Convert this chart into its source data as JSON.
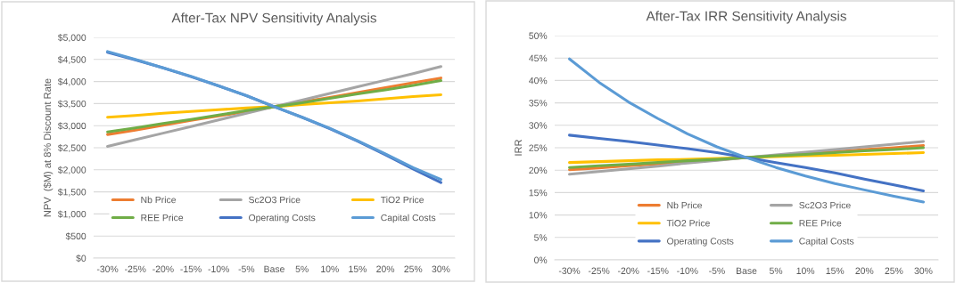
{
  "chart_data": [
    {
      "type": "line",
      "title": "After-Tax NPV Sensitivity Analysis",
      "ylabel": "NPV  ($M) at 8% Discount Rate",
      "categories": [
        "-30%",
        "-25%",
        "-20%",
        "-15%",
        "-10%",
        "-5%",
        "Base",
        "5%",
        "10%",
        "15%",
        "20%",
        "25%",
        "30%"
      ],
      "ylim": [
        0,
        5000
      ],
      "yticks": [
        {
          "value": 0,
          "label": "$0"
        },
        {
          "value": 500,
          "label": "$500"
        },
        {
          "value": 1000,
          "label": "$1,000"
        },
        {
          "value": 1500,
          "label": "$1,500"
        },
        {
          "value": 2000,
          "label": "$2,000"
        },
        {
          "value": 2500,
          "label": "$2,500"
        },
        {
          "value": 3000,
          "label": "$3,000"
        },
        {
          "value": 3500,
          "label": "$3,500"
        },
        {
          "value": 4000,
          "label": "$4,000"
        },
        {
          "value": 4500,
          "label": "$4,500"
        },
        {
          "value": 5000,
          "label": "$5,000"
        }
      ],
      "grid": "y",
      "legend": "bottom",
      "series": [
        {
          "name": "Nb Price",
          "color": "#ed7d31",
          "values": [
            2800,
            2900,
            3010,
            3120,
            3220,
            3320,
            3430,
            3540,
            3640,
            3750,
            3860,
            3970,
            4080
          ]
        },
        {
          "name": "Sc2O3 Price",
          "color": "#a5a5a5",
          "values": [
            2530,
            2680,
            2830,
            2980,
            3130,
            3280,
            3430,
            3580,
            3730,
            3880,
            4030,
            4180,
            4340
          ]
        },
        {
          "name": "TiO2 Price",
          "color": "#ffc000",
          "values": [
            3190,
            3230,
            3280,
            3320,
            3360,
            3400,
            3430,
            3480,
            3520,
            3560,
            3610,
            3660,
            3700
          ]
        },
        {
          "name": "REE Price",
          "color": "#70ad47",
          "values": [
            2860,
            2950,
            3050,
            3140,
            3240,
            3340,
            3430,
            3520,
            3620,
            3720,
            3810,
            3910,
            4020
          ]
        },
        {
          "name": "Operating Costs",
          "color": "#4472c4",
          "values": [
            4660,
            4490,
            4310,
            4110,
            3900,
            3680,
            3430,
            3190,
            2930,
            2650,
            2340,
            2020,
            1710
          ]
        },
        {
          "name": "Capital Costs",
          "color": "#5b9bd5",
          "values": [
            4680,
            4500,
            4310,
            4120,
            3900,
            3680,
            3430,
            3190,
            2940,
            2660,
            2360,
            2050,
            1780
          ]
        }
      ]
    },
    {
      "type": "line",
      "title": "After-Tax IRR Sensitivity Analysis",
      "ylabel": "IRR",
      "categories": [
        "-30%",
        "-25%",
        "-20%",
        "-15%",
        "-10%",
        "-5%",
        "Base",
        "5%",
        "10%",
        "15%",
        "20%",
        "25%",
        "30%"
      ],
      "ylim": [
        0,
        50
      ],
      "yticks": [
        {
          "value": 0,
          "label": "0%"
        },
        {
          "value": 5,
          "label": "5%"
        },
        {
          "value": 10,
          "label": "10%"
        },
        {
          "value": 15,
          "label": "15%"
        },
        {
          "value": 20,
          "label": "20%"
        },
        {
          "value": 25,
          "label": "25%"
        },
        {
          "value": 30,
          "label": "30%"
        },
        {
          "value": 35,
          "label": "35%"
        },
        {
          "value": 40,
          "label": "40%"
        },
        {
          "value": 45,
          "label": "45%"
        },
        {
          "value": 50,
          "label": "50%"
        }
      ],
      "grid": "y",
      "legend": "bottom",
      "series": [
        {
          "name": "Nb Price",
          "color": "#ed7d31",
          "values": [
            20.1,
            20.5,
            21.0,
            21.4,
            21.9,
            22.3,
            22.8,
            23.2,
            23.7,
            24.1,
            24.6,
            25.0,
            25.5
          ]
        },
        {
          "name": "Sc2O3 Price",
          "color": "#a5a5a5",
          "values": [
            19.1,
            19.7,
            20.3,
            20.9,
            21.6,
            22.2,
            22.8,
            23.4,
            24.0,
            24.6,
            25.2,
            25.8,
            26.4
          ]
        },
        {
          "name": "TiO2 Price",
          "color": "#ffc000",
          "values": [
            21.7,
            21.9,
            22.1,
            22.3,
            22.4,
            22.6,
            22.8,
            23.0,
            23.2,
            23.3,
            23.5,
            23.7,
            23.9
          ]
        },
        {
          "name": "REE Price",
          "color": "#70ad47",
          "values": [
            20.6,
            21.0,
            21.3,
            21.7,
            22.1,
            22.4,
            22.8,
            23.2,
            23.5,
            23.9,
            24.3,
            24.6,
            25.0
          ]
        },
        {
          "name": "Operating Costs",
          "color": "#4472c4",
          "values": [
            27.8,
            27.1,
            26.4,
            25.6,
            24.8,
            23.9,
            22.8,
            21.7,
            20.6,
            19.4,
            18.0,
            16.7,
            15.4
          ]
        },
        {
          "name": "Capital Costs",
          "color": "#5b9bd5",
          "values": [
            44.8,
            39.6,
            35.2,
            31.5,
            28.1,
            25.2,
            22.8,
            20.6,
            18.7,
            17.0,
            15.6,
            14.2,
            12.9
          ]
        }
      ]
    }
  ]
}
